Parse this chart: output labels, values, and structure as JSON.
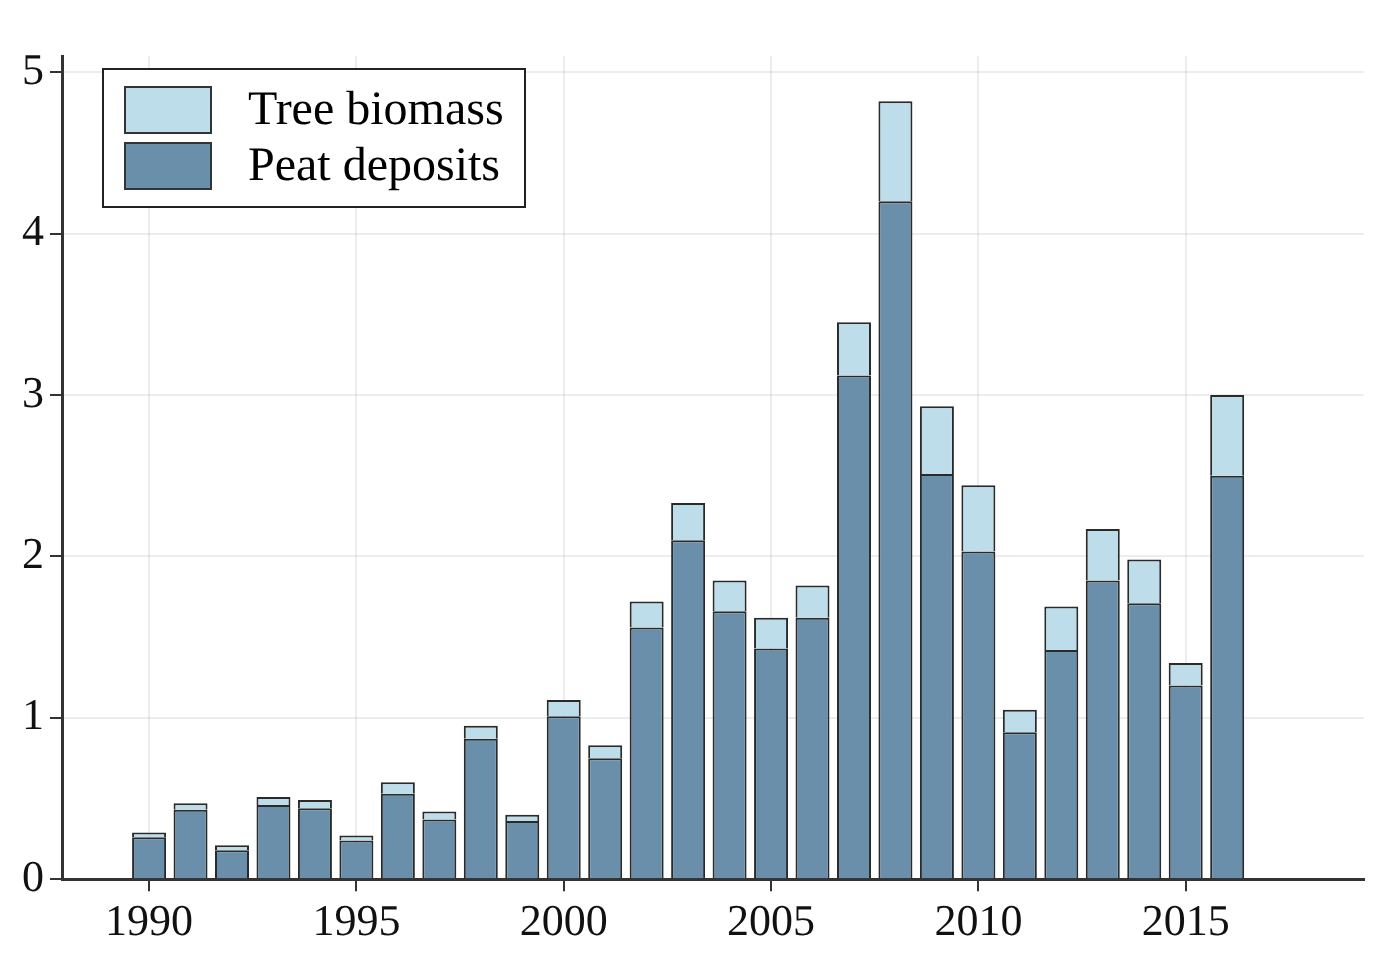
{
  "chart_data": {
    "type": "bar",
    "stacked": true,
    "x": [
      1990,
      1991,
      1992,
      1993,
      1994,
      1995,
      1996,
      1997,
      1998,
      1999,
      2000,
      2001,
      2002,
      2003,
      2004,
      2005,
      2006,
      2007,
      2008,
      2009,
      2010,
      2011,
      2012,
      2013,
      2014,
      2015,
      2016
    ],
    "series": [
      {
        "name": "Peat deposits",
        "color": "#6a8fab",
        "values": [
          0.26,
          0.43,
          0.18,
          0.46,
          0.44,
          0.24,
          0.53,
          0.37,
          0.87,
          0.36,
          1.01,
          0.75,
          1.56,
          2.1,
          1.66,
          1.43,
          1.62,
          3.12,
          4.2,
          2.51,
          2.03,
          0.91,
          1.42,
          1.85,
          1.71,
          1.2,
          2.5
        ]
      },
      {
        "name": "Tree biomass",
        "color": "#bcdde9",
        "values": [
          0.03,
          0.04,
          0.03,
          0.05,
          0.05,
          0.03,
          0.07,
          0.05,
          0.08,
          0.04,
          0.1,
          0.08,
          0.16,
          0.23,
          0.19,
          0.19,
          0.2,
          0.33,
          0.62,
          0.42,
          0.41,
          0.14,
          0.27,
          0.32,
          0.27,
          0.14,
          0.5
        ]
      }
    ],
    "xlim": [
      1987.9,
      2019.3
    ],
    "xticks": [
      1990,
      1995,
      2000,
      2005,
      2010,
      2015
    ],
    "ylim": [
      0,
      5.1
    ],
    "yticks": [
      0,
      1,
      2,
      3,
      4,
      5
    ],
    "grid": true,
    "legend": "top left"
  }
}
